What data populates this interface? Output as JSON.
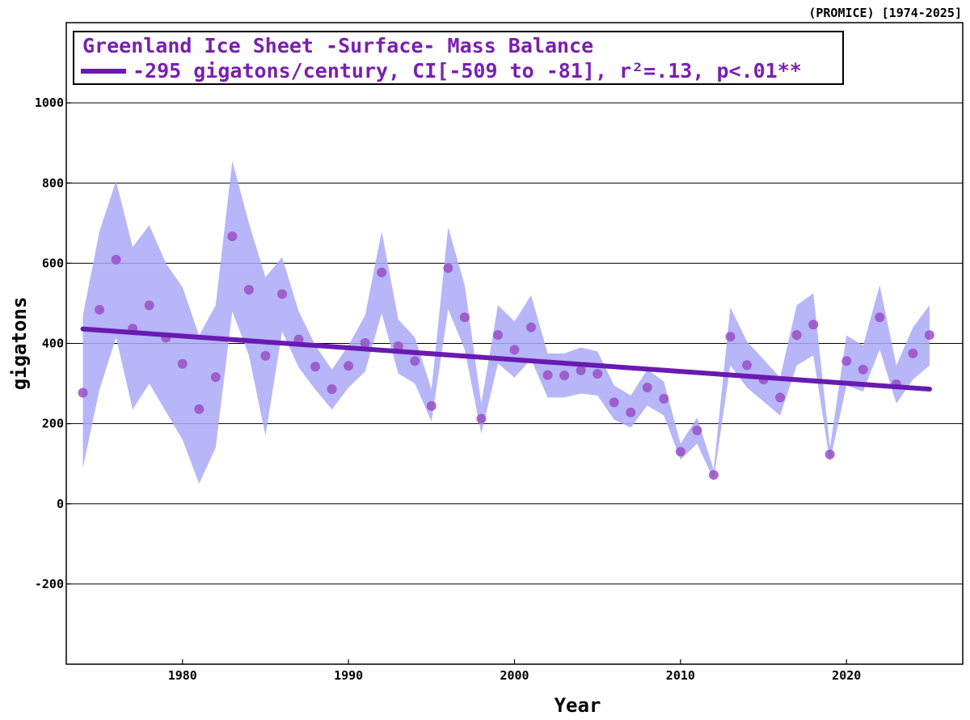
{
  "chart_data": {
    "type": "scatter",
    "title": "Greenland Ice Sheet -Surface- Mass Balance",
    "source_note": "(PROMICE) [1974-2025]",
    "xlabel": "Year",
    "ylabel": "gigatons",
    "xlim": [
      1973,
      2027
    ],
    "ylim": [
      -400,
      1200
    ],
    "x_ticks": [
      1980,
      1990,
      2000,
      2010,
      2020
    ],
    "y_ticks": [
      -200,
      0,
      200,
      400,
      600,
      800,
      1000
    ],
    "grid": "horizontal",
    "legend_placement": "top-left",
    "colors": {
      "points": "#9a4fc6",
      "band": "#a9a9f8",
      "trend": "#6a1ab2",
      "title_text": "#7a1fb0"
    },
    "series": [
      {
        "kind": "points",
        "x": [
          1974,
          1975,
          1976,
          1977,
          1978,
          1979,
          1980,
          1981,
          1982,
          1983,
          1984,
          1985,
          1986,
          1987,
          1988,
          1989,
          1990,
          1991,
          1992,
          1993,
          1994,
          1995,
          1996,
          1997,
          1998,
          1999,
          2000,
          2001,
          2002,
          2003,
          2004,
          2005,
          2006,
          2007,
          2008,
          2009,
          2010,
          2011,
          2012,
          2013,
          2014,
          2015,
          2016,
          2017,
          2018,
          2019,
          2020,
          2021,
          2022,
          2023,
          2024,
          2025
        ],
        "values": [
          277,
          484,
          609,
          437,
          495,
          414,
          349,
          236,
          316,
          667,
          534,
          369,
          523,
          410,
          342,
          286,
          344,
          401,
          577,
          393,
          356,
          244,
          588,
          465,
          212,
          421,
          384,
          440,
          321,
          320,
          333,
          324,
          253,
          228,
          290,
          262,
          130,
          183,
          72,
          417,
          346,
          310,
          265,
          421,
          447,
          123,
          356,
          335,
          465,
          298,
          375,
          421
        ]
      },
      {
        "kind": "band",
        "x": [
          1974,
          1975,
          1976,
          1977,
          1978,
          1979,
          1980,
          1981,
          1982,
          1983,
          1984,
          1985,
          1986,
          1987,
          1988,
          1989,
          1990,
          1991,
          1992,
          1993,
          1994,
          1995,
          1996,
          1997,
          1998,
          1999,
          2000,
          2001,
          2002,
          2003,
          2004,
          2005,
          2006,
          2007,
          2008,
          2009,
          2010,
          2011,
          2012,
          2013,
          2014,
          2015,
          2016,
          2017,
          2018,
          2019,
          2020,
          2021,
          2022,
          2023,
          2024,
          2025
        ],
        "upper": [
          470,
          680,
          805,
          640,
          695,
          600,
          540,
          420,
          495,
          855,
          700,
          565,
          615,
          480,
          395,
          335,
          395,
          470,
          680,
          460,
          415,
          285,
          690,
          545,
          250,
          495,
          455,
          520,
          375,
          375,
          390,
          380,
          295,
          270,
          335,
          305,
          150,
          215,
          85,
          490,
          405,
          360,
          315,
          495,
          525,
          140,
          420,
          395,
          545,
          345,
          440,
          495
        ],
        "lower": [
          90,
          285,
          415,
          235,
          300,
          230,
          160,
          50,
          140,
          480,
          370,
          170,
          430,
          340,
          285,
          235,
          290,
          330,
          475,
          325,
          300,
          205,
          485,
          385,
          175,
          350,
          315,
          360,
          265,
          265,
          275,
          270,
          210,
          190,
          245,
          220,
          110,
          150,
          60,
          345,
          290,
          255,
          220,
          345,
          370,
          105,
          295,
          280,
          385,
          250,
          310,
          345
        ]
      },
      {
        "kind": "trend",
        "name": "-295 gigatons/century, CI[-509 to -81], r²=.13, p<.01**",
        "x": [
          1974,
          2025
        ],
        "values": [
          436,
          286
        ]
      }
    ]
  }
}
